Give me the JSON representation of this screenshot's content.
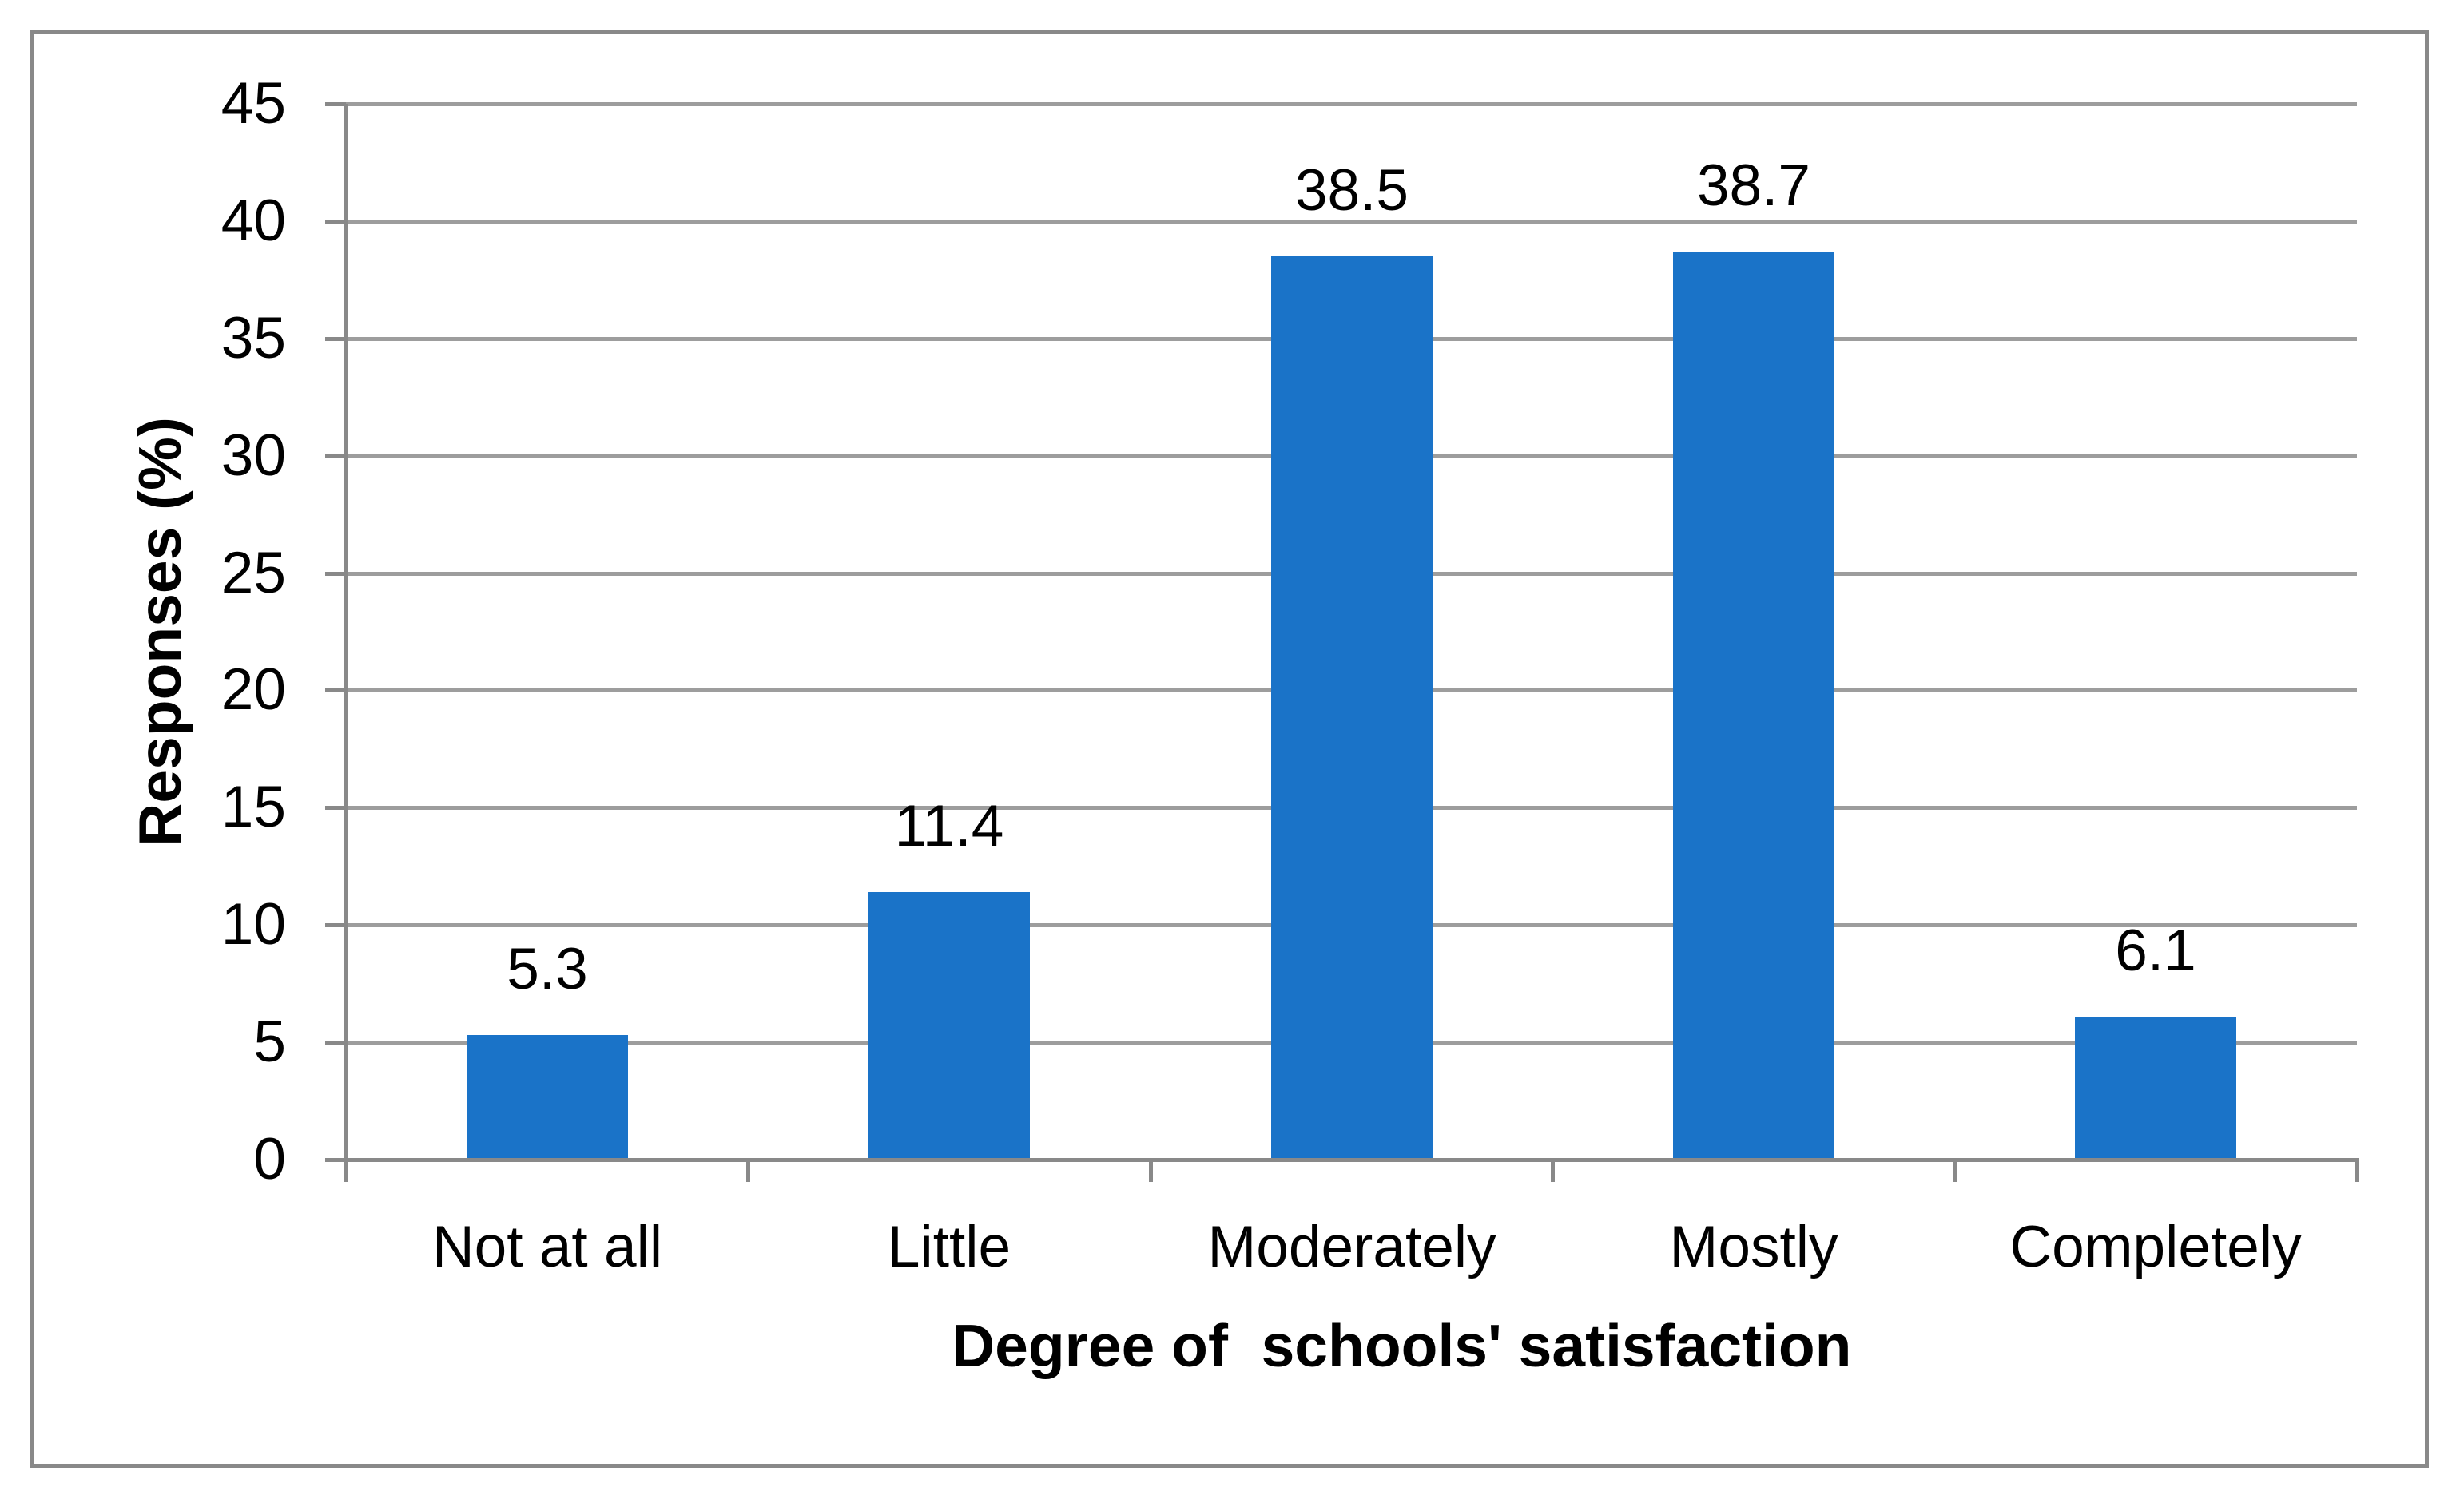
{
  "chart_data": {
    "type": "bar",
    "title": "",
    "categories": [
      "Not at all",
      "Little",
      "Moderately",
      "Mostly",
      "Completely"
    ],
    "values": [
      5.3,
      11.4,
      38.5,
      38.7,
      6.1
    ],
    "data_labels": [
      "5.3",
      "11.4",
      "38.5",
      "38.7",
      "6.1"
    ],
    "xlabel": "Degree of  schools' satisfaction",
    "ylabel": "Responses (%)",
    "ylim": [
      0,
      45
    ],
    "yticks": [
      0,
      5,
      10,
      15,
      20,
      25,
      30,
      35,
      40,
      45
    ],
    "grid": "horizontal-on",
    "legend": "none",
    "colors": {
      "bar": "#1a73c8",
      "gridline": "#9d9d9d",
      "axis": "#898989",
      "frame_border": "#898989",
      "text": "#000000",
      "background": "#ffffff"
    }
  }
}
